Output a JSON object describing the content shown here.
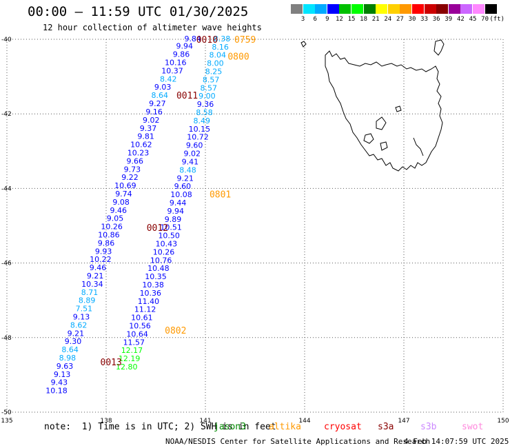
{
  "title": "00:00 — 11:59 UTC 01/30/2025",
  "subtitle": "12 hour collection of altimeter wave heights",
  "colorbar": {
    "labels": [
      "3",
      "6",
      "9",
      "12",
      "15",
      "18",
      "21",
      "24",
      "27",
      "30",
      "33",
      "36",
      "39",
      "42",
      "45",
      "70",
      "(ft)"
    ],
    "colors": [
      "#808080",
      "#00e5ff",
      "#00aaff",
      "#0000ff",
      "#00c000",
      "#00ff00",
      "#008000",
      "#ffff00",
      "#ffd000",
      "#ff9900",
      "#ff0000",
      "#cc0000",
      "#880000",
      "#990099",
      "#cc66ff",
      "#ff88ff",
      "#000000"
    ]
  },
  "note": {
    "prefix": "note:  1) Time is in UTC; 2) SWH is in feet",
    "satellites": [
      {
        "name": "jason3",
        "color": "#008800"
      },
      {
        "name": "altika",
        "color": "#ff9900"
      },
      {
        "name": "cryosat",
        "color": "#ff0000"
      },
      {
        "name": "s3a",
        "color": "#880000"
      },
      {
        "name": "s3b",
        "color": "#cc88ff"
      },
      {
        "name": "swot",
        "color": "#ff88dd"
      }
    ]
  },
  "credit": "NOAA/NESDIS Center for Satellite Applications and Research",
  "timestamp": "4 Feb 14:07:59 UTC 2025",
  "chart_data": {
    "type": "scatter",
    "x_ticks": [
      135,
      138,
      141,
      144,
      147,
      150
    ],
    "y_ticks": [
      -40,
      -42,
      -44,
      -46,
      -48,
      -50
    ],
    "xlim": [
      135,
      150
    ],
    "ylim": [
      -50,
      -40
    ],
    "grid": true,
    "colors": {
      "c6": "#00aaff",
      "c9": "#0000ff",
      "c12": "#00c000",
      "c15": "#00ff00"
    },
    "time_labels": [
      {
        "text": "0010",
        "x": 141.05,
        "y": -40.0,
        "color": "#880000"
      },
      {
        "text": "0759",
        "x": 142.2,
        "y": -40.0,
        "color": "#ff9900"
      },
      {
        "text": "0800",
        "x": 142.0,
        "y": -40.45,
        "color": "#ff9900"
      },
      {
        "text": "0011",
        "x": 140.45,
        "y": -41.5,
        "color": "#880000"
      },
      {
        "text": "0801",
        "x": 141.45,
        "y": -44.15,
        "color": "#ff9900"
      },
      {
        "text": "0012",
        "x": 139.55,
        "y": -45.05,
        "color": "#880000"
      },
      {
        "text": "0802",
        "x": 140.1,
        "y": -47.8,
        "color": "#ff9900"
      },
      {
        "text": "0013",
        "x": 138.15,
        "y": -48.65,
        "color": "#880000"
      }
    ],
    "series": [
      {
        "name": "0010",
        "points": [
          {
            "x": 140.62,
            "y": -39.98,
            "v": "9.84",
            "c": "c9"
          },
          {
            "x": 140.37,
            "y": -40.18,
            "v": "9.94",
            "c": "c9"
          },
          {
            "x": 140.27,
            "y": -40.4,
            "v": "9.86",
            "c": "c9"
          },
          {
            "x": 140.1,
            "y": -40.62,
            "v": "10.16",
            "c": "c9"
          },
          {
            "x": 140.0,
            "y": -40.84,
            "v": "10.37",
            "c": "c9"
          },
          {
            "x": 139.88,
            "y": -41.06,
            "v": "8.42",
            "c": "c6"
          },
          {
            "x": 139.71,
            "y": -41.28,
            "v": "9.03",
            "c": "c9"
          },
          {
            "x": 139.62,
            "y": -41.5,
            "v": "8.64",
            "c": "c6"
          },
          {
            "x": 139.55,
            "y": -41.72,
            "v": "9.27",
            "c": "c9"
          },
          {
            "x": 139.45,
            "y": -41.94,
            "v": "9.16",
            "c": "c9"
          },
          {
            "x": 139.36,
            "y": -42.16,
            "v": "9.02",
            "c": "c9"
          },
          {
            "x": 139.27,
            "y": -42.38,
            "v": "9.37",
            "c": "c9"
          },
          {
            "x": 139.2,
            "y": -42.6,
            "v": "9.81",
            "c": "c9"
          },
          {
            "x": 139.06,
            "y": -42.82,
            "v": "10.62",
            "c": "c9"
          },
          {
            "x": 138.97,
            "y": -43.04,
            "v": "10.23",
            "c": "c9"
          },
          {
            "x": 138.87,
            "y": -43.26,
            "v": "9.66",
            "c": "c9"
          },
          {
            "x": 138.79,
            "y": -43.48,
            "v": "9.73",
            "c": "c9"
          },
          {
            "x": 138.72,
            "y": -43.7,
            "v": "9.22",
            "c": "c9"
          },
          {
            "x": 138.58,
            "y": -43.92,
            "v": "10.69",
            "c": "c9"
          },
          {
            "x": 138.53,
            "y": -44.14,
            "v": "9.74",
            "c": "c9"
          },
          {
            "x": 138.45,
            "y": -44.36,
            "v": "9.08",
            "c": "c9"
          },
          {
            "x": 138.37,
            "y": -44.58,
            "v": "9.46",
            "c": "c9"
          },
          {
            "x": 138.27,
            "y": -44.8,
            "v": "9.05",
            "c": "c9"
          },
          {
            "x": 138.17,
            "y": -45.02,
            "v": "10.26",
            "c": "c9"
          },
          {
            "x": 138.08,
            "y": -45.24,
            "v": "10.86",
            "c": "c9"
          },
          {
            "x": 138.0,
            "y": -45.46,
            "v": "9.86",
            "c": "c9"
          },
          {
            "x": 137.92,
            "y": -45.68,
            "v": "9.93",
            "c": "c9"
          },
          {
            "x": 137.83,
            "y": -45.9,
            "v": "10.22",
            "c": "c9"
          },
          {
            "x": 137.75,
            "y": -46.12,
            "v": "9.46",
            "c": "c9"
          },
          {
            "x": 137.67,
            "y": -46.34,
            "v": "9.21",
            "c": "c9"
          },
          {
            "x": 137.58,
            "y": -46.56,
            "v": "10.34",
            "c": "c9"
          },
          {
            "x": 137.5,
            "y": -46.78,
            "v": "8.71",
            "c": "c6"
          },
          {
            "x": 137.42,
            "y": -47.0,
            "v": "8.89",
            "c": "c6"
          },
          {
            "x": 137.33,
            "y": -47.22,
            "v": "7.51",
            "c": "c6"
          },
          {
            "x": 137.25,
            "y": -47.44,
            "v": "9.13",
            "c": "c9"
          },
          {
            "x": 137.17,
            "y": -47.66,
            "v": "8.62",
            "c": "c6"
          },
          {
            "x": 137.08,
            "y": -47.88,
            "v": "9.21",
            "c": "c9"
          },
          {
            "x": 137.0,
            "y": -48.1,
            "v": "9.30",
            "c": "c9"
          },
          {
            "x": 136.91,
            "y": -48.32,
            "v": "8.64",
            "c": "c6"
          },
          {
            "x": 136.83,
            "y": -48.54,
            "v": "8.98",
            "c": "c6"
          },
          {
            "x": 136.75,
            "y": -48.76,
            "v": "9.63",
            "c": "c9"
          },
          {
            "x": 136.67,
            "y": -48.98,
            "v": "9.13",
            "c": "c9"
          },
          {
            "x": 136.58,
            "y": -49.2,
            "v": "9.43",
            "c": "c9"
          },
          {
            "x": 136.5,
            "y": -49.42,
            "v": "10.18",
            "c": "c9"
          }
        ]
      },
      {
        "name": "0759",
        "points": [
          {
            "x": 141.5,
            "y": -39.98,
            "v": "8.38",
            "c": "c6"
          },
          {
            "x": 141.45,
            "y": -40.2,
            "v": "8.16",
            "c": "c6"
          },
          {
            "x": 141.37,
            "y": -40.42,
            "v": "8.04",
            "c": "c6"
          },
          {
            "x": 141.3,
            "y": -40.64,
            "v": "8.00",
            "c": "c6"
          },
          {
            "x": 141.25,
            "y": -40.86,
            "v": "8.25",
            "c": "c6"
          },
          {
            "x": 141.17,
            "y": -41.08,
            "v": "8.57",
            "c": "c6"
          },
          {
            "x": 141.1,
            "y": -41.3,
            "v": "8.57",
            "c": "c6"
          },
          {
            "x": 141.05,
            "y": -41.52,
            "v": "9.00",
            "c": "c6"
          },
          {
            "x": 141.0,
            "y": -41.74,
            "v": "9.36",
            "c": "c9"
          },
          {
            "x": 140.97,
            "y": -41.96,
            "v": "8.58",
            "c": "c6"
          },
          {
            "x": 140.89,
            "y": -42.18,
            "v": "8.49",
            "c": "c6"
          },
          {
            "x": 140.82,
            "y": -42.4,
            "v": "10.15",
            "c": "c9"
          },
          {
            "x": 140.77,
            "y": -42.62,
            "v": "10.72",
            "c": "c9"
          },
          {
            "x": 140.67,
            "y": -42.84,
            "v": "9.60",
            "c": "c9"
          },
          {
            "x": 140.6,
            "y": -43.06,
            "v": "9.02",
            "c": "c9"
          },
          {
            "x": 140.54,
            "y": -43.28,
            "v": "9.41",
            "c": "c9"
          },
          {
            "x": 140.47,
            "y": -43.5,
            "v": "8.48",
            "c": "c6"
          },
          {
            "x": 140.39,
            "y": -43.72,
            "v": "9.21",
            "c": "c9"
          },
          {
            "x": 140.31,
            "y": -43.94,
            "v": "9.60",
            "c": "c9"
          },
          {
            "x": 140.27,
            "y": -44.16,
            "v": "10.08",
            "c": "c9"
          },
          {
            "x": 140.17,
            "y": -44.38,
            "v": "9.44",
            "c": "c9"
          },
          {
            "x": 140.1,
            "y": -44.6,
            "v": "9.94",
            "c": "c9"
          },
          {
            "x": 140.02,
            "y": -44.82,
            "v": "9.89",
            "c": "c9"
          },
          {
            "x": 139.96,
            "y": -45.04,
            "v": "10.51",
            "c": "c9"
          },
          {
            "x": 139.9,
            "y": -45.26,
            "v": "10.50",
            "c": "c9"
          },
          {
            "x": 139.82,
            "y": -45.48,
            "v": "10.43",
            "c": "c9"
          },
          {
            "x": 139.74,
            "y": -45.7,
            "v": "10.26",
            "c": "c9"
          },
          {
            "x": 139.66,
            "y": -45.92,
            "v": "10.76",
            "c": "c9"
          },
          {
            "x": 139.58,
            "y": -46.14,
            "v": "10.48",
            "c": "c9"
          },
          {
            "x": 139.5,
            "y": -46.36,
            "v": "10.35",
            "c": "c9"
          },
          {
            "x": 139.42,
            "y": -46.58,
            "v": "10.38",
            "c": "c9"
          },
          {
            "x": 139.34,
            "y": -46.8,
            "v": "10.36",
            "c": "c9"
          },
          {
            "x": 139.28,
            "y": -47.02,
            "v": "11.40",
            "c": "c9"
          },
          {
            "x": 139.18,
            "y": -47.24,
            "v": "11.12",
            "c": "c9"
          },
          {
            "x": 139.08,
            "y": -47.46,
            "v": "10.61",
            "c": "c9"
          },
          {
            "x": 139.02,
            "y": -47.68,
            "v": "10.56",
            "c": "c9"
          },
          {
            "x": 138.94,
            "y": -47.9,
            "v": "10.64",
            "c": "c9"
          },
          {
            "x": 138.84,
            "y": -48.12,
            "v": "11.57",
            "c": "c9"
          },
          {
            "x": 138.78,
            "y": -48.34,
            "v": "12.17",
            "c": "c15"
          },
          {
            "x": 138.7,
            "y": -48.56,
            "v": "12.19",
            "c": "c15"
          },
          {
            "x": 138.62,
            "y": -48.78,
            "v": "12.80",
            "c": "c15"
          }
        ]
      }
    ]
  }
}
